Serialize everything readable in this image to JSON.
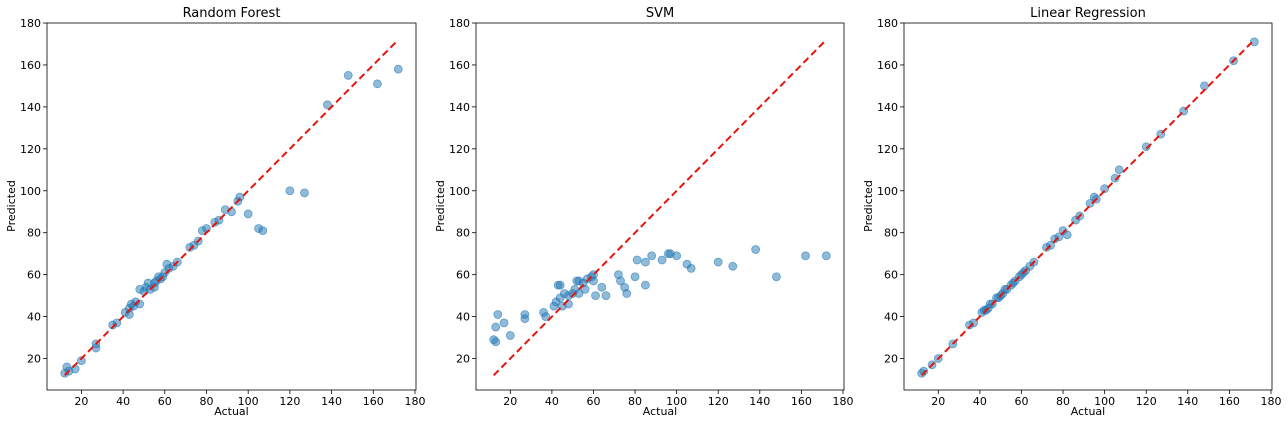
{
  "chart_data": [
    {
      "type": "scatter",
      "title": "Random Forest",
      "xlabel": "Actual",
      "ylabel": "Predicted",
      "xlim": [
        3.5,
        180.5
      ],
      "ylim": [
        5,
        180
      ],
      "xticks": [
        20,
        40,
        60,
        80,
        100,
        120,
        140,
        160,
        180
      ],
      "yticks": [
        20,
        40,
        60,
        80,
        100,
        120,
        140,
        160,
        180
      ],
      "point_color": "#1f77b4",
      "reference_line": {
        "from": [
          12,
          12
        ],
        "to": [
          172,
          172
        ],
        "color": "#e8140c",
        "style": "dashed"
      },
      "points": [
        [
          12,
          13
        ],
        [
          13,
          16
        ],
        [
          14,
          14
        ],
        [
          17,
          15
        ],
        [
          20,
          19
        ],
        [
          27,
          25
        ],
        [
          27,
          27
        ],
        [
          35,
          36
        ],
        [
          37,
          37
        ],
        [
          41,
          42
        ],
        [
          43,
          41
        ],
        [
          43,
          44
        ],
        [
          44,
          46
        ],
        [
          45,
          45
        ],
        [
          46,
          47
        ],
        [
          48,
          53
        ],
        [
          48,
          46
        ],
        [
          50,
          52
        ],
        [
          51,
          54
        ],
        [
          52,
          56
        ],
        [
          53,
          53
        ],
        [
          55,
          54
        ],
        [
          55,
          56
        ],
        [
          56,
          57
        ],
        [
          57,
          59
        ],
        [
          58,
          58
        ],
        [
          59,
          59
        ],
        [
          60,
          61
        ],
        [
          61,
          65
        ],
        [
          62,
          63
        ],
        [
          64,
          64
        ],
        [
          66,
          66
        ],
        [
          72,
          73
        ],
        [
          74,
          74
        ],
        [
          76,
          76
        ],
        [
          78,
          81
        ],
        [
          80,
          82
        ],
        [
          84,
          85
        ],
        [
          86,
          86
        ],
        [
          89,
          91
        ],
        [
          92,
          90
        ],
        [
          95,
          95
        ],
        [
          96,
          97
        ],
        [
          100,
          89
        ],
        [
          105,
          82
        ],
        [
          107,
          81
        ],
        [
          120,
          100
        ],
        [
          127,
          99
        ],
        [
          138,
          141
        ],
        [
          148,
          155
        ],
        [
          162,
          151
        ],
        [
          172,
          158
        ]
      ]
    },
    {
      "type": "scatter",
      "title": "SVM",
      "xlabel": "Actual",
      "ylabel": "Predicted",
      "xlim": [
        3.5,
        180.5
      ],
      "ylim": [
        5,
        180
      ],
      "xticks": [
        20,
        40,
        60,
        80,
        100,
        120,
        140,
        160,
        180
      ],
      "yticks": [
        20,
        40,
        60,
        80,
        100,
        120,
        140,
        160,
        180
      ],
      "point_color": "#1f77b4",
      "reference_line": {
        "from": [
          12,
          12
        ],
        "to": [
          172,
          172
        ],
        "color": "#e8140c",
        "style": "dashed"
      },
      "points": [
        [
          12,
          29
        ],
        [
          13,
          28
        ],
        [
          13,
          35
        ],
        [
          14,
          41
        ],
        [
          17,
          37
        ],
        [
          20,
          31
        ],
        [
          27,
          39
        ],
        [
          27,
          41
        ],
        [
          36,
          42
        ],
        [
          37,
          40
        ],
        [
          41,
          45
        ],
        [
          42,
          47
        ],
        [
          43,
          55
        ],
        [
          44,
          55
        ],
        [
          44,
          49
        ],
        [
          45,
          45
        ],
        [
          46,
          51
        ],
        [
          48,
          50
        ],
        [
          48,
          46
        ],
        [
          50,
          51
        ],
        [
          51,
          53
        ],
        [
          52,
          57
        ],
        [
          53,
          57
        ],
        [
          53,
          51
        ],
        [
          55,
          56
        ],
        [
          56,
          53
        ],
        [
          57,
          58
        ],
        [
          59,
          59
        ],
        [
          60,
          60
        ],
        [
          60,
          57
        ],
        [
          61,
          50
        ],
        [
          64,
          54
        ],
        [
          66,
          50
        ],
        [
          72,
          60
        ],
        [
          73,
          57
        ],
        [
          75,
          54
        ],
        [
          76,
          51
        ],
        [
          80,
          59
        ],
        [
          81,
          67
        ],
        [
          85,
          55
        ],
        [
          85,
          66
        ],
        [
          88,
          69
        ],
        [
          93,
          67
        ],
        [
          96,
          70
        ],
        [
          97,
          70
        ],
        [
          100,
          69
        ],
        [
          105,
          65
        ],
        [
          107,
          63
        ],
        [
          120,
          66
        ],
        [
          127,
          64
        ],
        [
          138,
          72
        ],
        [
          148,
          59
        ],
        [
          162,
          69
        ],
        [
          172,
          69
        ]
      ]
    },
    {
      "type": "scatter",
      "title": "Linear Regression",
      "xlabel": "Actual",
      "ylabel": "Predicted",
      "xlim": [
        3.5,
        180.5
      ],
      "ylim": [
        5,
        180
      ],
      "xticks": [
        20,
        40,
        60,
        80,
        100,
        120,
        140,
        160,
        180
      ],
      "yticks": [
        20,
        40,
        60,
        80,
        100,
        120,
        140,
        160,
        180
      ],
      "point_color": "#1f77b4",
      "reference_line": {
        "from": [
          12,
          12
        ],
        "to": [
          172,
          172
        ],
        "color": "#e8140c",
        "style": "dashed"
      },
      "points": [
        [
          12,
          13
        ],
        [
          13,
          14
        ],
        [
          17,
          17
        ],
        [
          20,
          20
        ],
        [
          27,
          27
        ],
        [
          35,
          36
        ],
        [
          37,
          37
        ],
        [
          41,
          42
        ],
        [
          42,
          43
        ],
        [
          43,
          43
        ],
        [
          44,
          44
        ],
        [
          45,
          46
        ],
        [
          46,
          46
        ],
        [
          48,
          49
        ],
        [
          49,
          49
        ],
        [
          50,
          50
        ],
        [
          51,
          51
        ],
        [
          52,
          53
        ],
        [
          53,
          53
        ],
        [
          55,
          55
        ],
        [
          56,
          56
        ],
        [
          57,
          57
        ],
        [
          59,
          59
        ],
        [
          60,
          60
        ],
        [
          61,
          61
        ],
        [
          62,
          62
        ],
        [
          64,
          64
        ],
        [
          66,
          66
        ],
        [
          72,
          73
        ],
        [
          74,
          74
        ],
        [
          76,
          77
        ],
        [
          78,
          78
        ],
        [
          80,
          81
        ],
        [
          82,
          79
        ],
        [
          86,
          86
        ],
        [
          88,
          88
        ],
        [
          93,
          94
        ],
        [
          95,
          97
        ],
        [
          96,
          96
        ],
        [
          100,
          101
        ],
        [
          105,
          106
        ],
        [
          107,
          110
        ],
        [
          120,
          121
        ],
        [
          127,
          127
        ],
        [
          138,
          138
        ],
        [
          148,
          150
        ],
        [
          162,
          162
        ],
        [
          172,
          171
        ]
      ]
    }
  ]
}
